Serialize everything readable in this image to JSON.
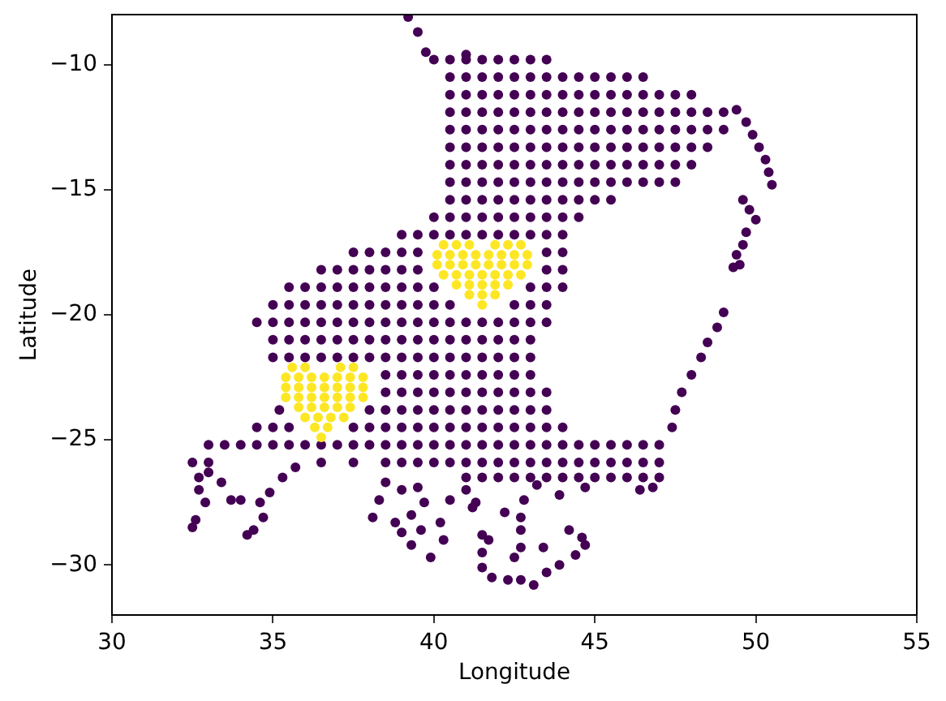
{
  "chart_data": {
    "type": "scatter",
    "xlabel": "Longitude",
    "ylabel": "Latitude",
    "xlim": [
      30,
      55
    ],
    "xticks": [
      30,
      35,
      40,
      45,
      50,
      55
    ],
    "ylim": [
      -32,
      -8
    ],
    "yticks": [
      {
        "value": -30,
        "label": "−30"
      },
      {
        "value": -25,
        "label": "−25"
      },
      {
        "value": -20,
        "label": "−20"
      },
      {
        "value": -15,
        "label": "−15"
      },
      {
        "value": -10,
        "label": "−10"
      }
    ],
    "marker": "circle",
    "series": [
      {
        "color": "#440154",
        "x": [
          39.2,
          39.5,
          39.75,
          40,
          41,
          40.5,
          41,
          41.5,
          42,
          42.5,
          43,
          43.5,
          40.5,
          41,
          41.5,
          42,
          42.5,
          43,
          43.5,
          44,
          44.5,
          45,
          45.5,
          46,
          46.5,
          40.5,
          41,
          41.5,
          42,
          42.5,
          43,
          43.5,
          44,
          44.5,
          45,
          45.5,
          46,
          46.5,
          47,
          47.5,
          48,
          40.5,
          41,
          41.5,
          42,
          42.5,
          43,
          43.5,
          44,
          44.5,
          45,
          45.5,
          46,
          46.5,
          47,
          47.5,
          48,
          48.5,
          49,
          40.5,
          41,
          41.5,
          42,
          42.5,
          43,
          43.5,
          44,
          44.5,
          45,
          45.5,
          46,
          46.5,
          47,
          47.5,
          48,
          48.5,
          49,
          40.5,
          41,
          41.5,
          42,
          42.5,
          43,
          43.5,
          44,
          44.5,
          45,
          45.5,
          46,
          46.5,
          47,
          47.5,
          48,
          48.5,
          40.5,
          41,
          41.5,
          42,
          42.5,
          43,
          43.5,
          44,
          44.5,
          45,
          45.5,
          46,
          46.5,
          47,
          47.5,
          48,
          40.5,
          41,
          41.5,
          42,
          42.5,
          43,
          43.5,
          44,
          44.5,
          45,
          45.5,
          46,
          46.5,
          47,
          47.5,
          40.5,
          41,
          41.5,
          42,
          42.5,
          43,
          43.5,
          44,
          44.5,
          45,
          45.5,
          40,
          40.5,
          41,
          41.5,
          42,
          42.5,
          43,
          43.5,
          44,
          44.5,
          39,
          39.5,
          40,
          40.5,
          41,
          41.5,
          42,
          42.5,
          43,
          43.5,
          44,
          37.5,
          38,
          38.5,
          39,
          39.5,
          43.5,
          44,
          36.5,
          37,
          37.5,
          38,
          38.5,
          39,
          39.5,
          43.5,
          44,
          35.5,
          36,
          36.5,
          37,
          37.5,
          38,
          38.5,
          39,
          39.5,
          40,
          43,
          43.5,
          44,
          35,
          35.5,
          36,
          36.5,
          37,
          37.5,
          38,
          38.5,
          39,
          39.5,
          40,
          40.5,
          42.5,
          43,
          43.5,
          34.5,
          35,
          35.5,
          36,
          36.5,
          37,
          37.5,
          38,
          38.5,
          39,
          39.5,
          40,
          40.5,
          41,
          41.5,
          42,
          42.5,
          43,
          43.5,
          35,
          35.5,
          36,
          36.5,
          37,
          37.5,
          38,
          38.5,
          39,
          39.5,
          40,
          40.5,
          41,
          41.5,
          42,
          42.5,
          43,
          35,
          35.5,
          36,
          36.5,
          37,
          37.5,
          38,
          38.5,
          39,
          39.5,
          40,
          40.5,
          41,
          41.5,
          42,
          42.5,
          43,
          38.5,
          39,
          39.5,
          40,
          40.5,
          41,
          41.5,
          42,
          42.5,
          43,
          38.5,
          39,
          39.5,
          40,
          40.5,
          41,
          41.5,
          42,
          42.5,
          43,
          43.5,
          35.2,
          38,
          38.5,
          39,
          39.5,
          40,
          40.5,
          41,
          41.5,
          42,
          42.5,
          43,
          43.5,
          34.5,
          35,
          35.5,
          37.5,
          38,
          38.5,
          39,
          39.5,
          40,
          40.5,
          41,
          41.5,
          42,
          42.5,
          43,
          43.5,
          44,
          33,
          33.5,
          34,
          34.5,
          35,
          35.5,
          36,
          36.5,
          37,
          37.5,
          38,
          38.5,
          39,
          39.5,
          40,
          40.5,
          41,
          41.5,
          42,
          42.5,
          43,
          43.5,
          44,
          44.5,
          45,
          45.5,
          46,
          46.5,
          47,
          32.5,
          33,
          36.5,
          37.5,
          38.5,
          39,
          39.5,
          40,
          40.5,
          41,
          41.5,
          42,
          42.5,
          43,
          43.5,
          44,
          44.5,
          45,
          45.5,
          46,
          46.5,
          47,
          32.7,
          41,
          41.5,
          42,
          42.5,
          43,
          43.5,
          44,
          44.5,
          45,
          45.5,
          46,
          46.5,
          47,
          49.4,
          49.7,
          49.9,
          50.1,
          50.3,
          50.4,
          50.5,
          49.6,
          49.8,
          50,
          49.7,
          49.6,
          49.4,
          49.3,
          49.5,
          49,
          48.8,
          48.5,
          48.3,
          48,
          47.7,
          47.5,
          47.4,
          32.5,
          32.6,
          34.2,
          34.4,
          34.7,
          33.7,
          33.4,
          34.9,
          35.3,
          35.7,
          34.6,
          34,
          32.9,
          32.7,
          33,
          38.1,
          38.3,
          38.5,
          39,
          39.3,
          39.9,
          40.3,
          40.2,
          39.7,
          40.5,
          39.5,
          41.2,
          41.5,
          41.5,
          41.5,
          41.8,
          42.3,
          42.7,
          43.1,
          43.5,
          43.9,
          44.4,
          44.7,
          44.6,
          44.2,
          43.4,
          42.7,
          42.7,
          42.5,
          41.7,
          42.7,
          42.2,
          41.3,
          41,
          42.8,
          43.9,
          44.7,
          46.4,
          46.8,
          43.2,
          39,
          39.3,
          38.8,
          39.6
        ],
        "values": [
          -8.1,
          -8.7,
          -9.5,
          -9.8,
          -9.6,
          -9.8,
          -9.8,
          -9.8,
          -9.8,
          -9.8,
          -9.8,
          -9.8,
          -10.5,
          -10.5,
          -10.5,
          -10.5,
          -10.5,
          -10.5,
          -10.5,
          -10.5,
          -10.5,
          -10.5,
          -10.5,
          -10.5,
          -10.5,
          -11.2,
          -11.2,
          -11.2,
          -11.2,
          -11.2,
          -11.2,
          -11.2,
          -11.2,
          -11.2,
          -11.2,
          -11.2,
          -11.2,
          -11.2,
          -11.2,
          -11.2,
          -11.2,
          -11.9,
          -11.9,
          -11.9,
          -11.9,
          -11.9,
          -11.9,
          -11.9,
          -11.9,
          -11.9,
          -11.9,
          -11.9,
          -11.9,
          -11.9,
          -11.9,
          -11.9,
          -11.9,
          -11.9,
          -11.9,
          -12.6,
          -12.6,
          -12.6,
          -12.6,
          -12.6,
          -12.6,
          -12.6,
          -12.6,
          -12.6,
          -12.6,
          -12.6,
          -12.6,
          -12.6,
          -12.6,
          -12.6,
          -12.6,
          -12.6,
          -12.6,
          -13.3,
          -13.3,
          -13.3,
          -13.3,
          -13.3,
          -13.3,
          -13.3,
          -13.3,
          -13.3,
          -13.3,
          -13.3,
          -13.3,
          -13.3,
          -13.3,
          -13.3,
          -13.3,
          -13.3,
          -14,
          -14,
          -14,
          -14,
          -14,
          -14,
          -14,
          -14,
          -14,
          -14,
          -14,
          -14,
          -14,
          -14,
          -14,
          -14,
          -14.7,
          -14.7,
          -14.7,
          -14.7,
          -14.7,
          -14.7,
          -14.7,
          -14.7,
          -14.7,
          -14.7,
          -14.7,
          -14.7,
          -14.7,
          -14.7,
          -14.7,
          -15.4,
          -15.4,
          -15.4,
          -15.4,
          -15.4,
          -15.4,
          -15.4,
          -15.4,
          -15.4,
          -15.4,
          -15.4,
          -16.1,
          -16.1,
          -16.1,
          -16.1,
          -16.1,
          -16.1,
          -16.1,
          -16.1,
          -16.1,
          -16.1,
          -16.8,
          -16.8,
          -16.8,
          -16.8,
          -16.8,
          -16.8,
          -16.8,
          -16.8,
          -16.8,
          -16.8,
          -16.8,
          -17.5,
          -17.5,
          -17.5,
          -17.5,
          -17.5,
          -17.5,
          -17.5,
          -18.2,
          -18.2,
          -18.2,
          -18.2,
          -18.2,
          -18.2,
          -18.2,
          -18.2,
          -18.2,
          -18.9,
          -18.9,
          -18.9,
          -18.9,
          -18.9,
          -18.9,
          -18.9,
          -18.9,
          -18.9,
          -18.9,
          -18.9,
          -18.9,
          -18.9,
          -19.6,
          -19.6,
          -19.6,
          -19.6,
          -19.6,
          -19.6,
          -19.6,
          -19.6,
          -19.6,
          -19.6,
          -19.6,
          -19.6,
          -19.6,
          -19.6,
          -19.6,
          -20.3,
          -20.3,
          -20.3,
          -20.3,
          -20.3,
          -20.3,
          -20.3,
          -20.3,
          -20.3,
          -20.3,
          -20.3,
          -20.3,
          -20.3,
          -20.3,
          -20.3,
          -20.3,
          -20.3,
          -20.3,
          -20.3,
          -21,
          -21,
          -21,
          -21,
          -21,
          -21,
          -21,
          -21,
          -21,
          -21,
          -21,
          -21,
          -21,
          -21,
          -21,
          -21,
          -21,
          -21.7,
          -21.7,
          -21.7,
          -21.7,
          -21.7,
          -21.7,
          -21.7,
          -21.7,
          -21.7,
          -21.7,
          -21.7,
          -21.7,
          -21.7,
          -21.7,
          -21.7,
          -21.7,
          -21.7,
          -22.4,
          -22.4,
          -22.4,
          -22.4,
          -22.4,
          -22.4,
          -22.4,
          -22.4,
          -22.4,
          -22.4,
          -23.1,
          -23.1,
          -23.1,
          -23.1,
          -23.1,
          -23.1,
          -23.1,
          -23.1,
          -23.1,
          -23.1,
          -23.1,
          -23.8,
          -23.8,
          -23.8,
          -23.8,
          -23.8,
          -23.8,
          -23.8,
          -23.8,
          -23.8,
          -23.8,
          -23.8,
          -23.8,
          -23.8,
          -24.5,
          -24.5,
          -24.5,
          -24.5,
          -24.5,
          -24.5,
          -24.5,
          -24.5,
          -24.5,
          -24.5,
          -24.5,
          -24.5,
          -24.5,
          -24.5,
          -24.5,
          -24.5,
          -24.5,
          -25.2,
          -25.2,
          -25.2,
          -25.2,
          -25.2,
          -25.2,
          -25.2,
          -25.2,
          -25.2,
          -25.2,
          -25.2,
          -25.2,
          -25.2,
          -25.2,
          -25.2,
          -25.2,
          -25.2,
          -25.2,
          -25.2,
          -25.2,
          -25.2,
          -25.2,
          -25.2,
          -25.2,
          -25.2,
          -25.2,
          -25.2,
          -25.2,
          -25.2,
          -25.9,
          -25.9,
          -25.9,
          -25.9,
          -25.9,
          -25.9,
          -25.9,
          -25.9,
          -25.9,
          -25.9,
          -25.9,
          -25.9,
          -25.9,
          -25.9,
          -25.9,
          -25.9,
          -25.9,
          -25.9,
          -25.9,
          -25.9,
          -25.9,
          -25.9,
          -26.5,
          -26.5,
          -26.5,
          -26.5,
          -26.5,
          -26.5,
          -26.5,
          -26.5,
          -26.5,
          -26.5,
          -26.5,
          -26.5,
          -26.5,
          -26.5,
          -11.8,
          -12.3,
          -12.8,
          -13.3,
          -13.8,
          -14.3,
          -14.8,
          -15.4,
          -15.8,
          -16.2,
          -16.7,
          -17.2,
          -17.6,
          -18.1,
          -18,
          -19.9,
          -20.5,
          -21.1,
          -21.7,
          -22.4,
          -23.1,
          -23.8,
          -24.5,
          -28.5,
          -28.2,
          -28.8,
          -28.6,
          -28.1,
          -27.4,
          -26.7,
          -27.1,
          -26.5,
          -26.1,
          -27.5,
          -27.4,
          -27.5,
          -27,
          -26.3,
          -28.1,
          -27.4,
          -26.7,
          -28.7,
          -29.2,
          -29.7,
          -29,
          -28.3,
          -27.5,
          -27.4,
          -26.9,
          -27.7,
          -28.8,
          -30.1,
          -29.5,
          -30.5,
          -30.6,
          -30.6,
          -30.8,
          -30.3,
          -30,
          -29.6,
          -29.2,
          -28.9,
          -28.6,
          -29.3,
          -29.3,
          -28.6,
          -29.7,
          -29,
          -28.1,
          -27.9,
          -27.5,
          -27,
          -27.4,
          -27.2,
          -26.9,
          -27,
          -26.9,
          -26.8,
          -27,
          -28,
          -28.3,
          -28.6
        ]
      },
      {
        "color": "#fde725",
        "x": [
          40.3,
          40.7,
          41.1,
          41.9,
          42.3,
          42.7,
          40.1,
          40.5,
          40.9,
          41.3,
          41.7,
          42.1,
          42.5,
          42.9,
          40.1,
          40.5,
          40.9,
          41.3,
          41.7,
          42.1,
          42.5,
          42.9,
          40.3,
          40.7,
          41.1,
          41.5,
          41.9,
          42.3,
          42.7,
          40.7,
          41.1,
          41.5,
          41.9,
          42.3,
          41.1,
          41.5,
          41.9,
          41.5,
          35.6,
          36,
          37.1,
          37.5,
          35.4,
          35.8,
          36.2,
          36.6,
          37,
          37.4,
          37.8,
          35.4,
          35.8,
          36.2,
          36.6,
          37,
          37.4,
          37.8,
          35.4,
          35.8,
          36.2,
          36.6,
          37,
          37.4,
          37.8,
          35.8,
          36.2,
          36.6,
          37,
          37.4,
          36,
          36.4,
          36.8,
          37.2,
          36.3,
          36.7,
          36.5
        ],
        "values": [
          -17.2,
          -17.2,
          -17.2,
          -17.2,
          -17.2,
          -17.2,
          -17.6,
          -17.6,
          -17.6,
          -17.6,
          -17.6,
          -17.6,
          -17.6,
          -17.6,
          -18,
          -18,
          -18,
          -18,
          -18,
          -18,
          -18,
          -18,
          -18.4,
          -18.4,
          -18.4,
          -18.4,
          -18.4,
          -18.4,
          -18.4,
          -18.8,
          -18.8,
          -18.8,
          -18.8,
          -18.8,
          -19.2,
          -19.2,
          -19.2,
          -19.6,
          -22.1,
          -22.1,
          -22.1,
          -22.1,
          -22.5,
          -22.5,
          -22.5,
          -22.5,
          -22.5,
          -22.5,
          -22.5,
          -22.9,
          -22.9,
          -22.9,
          -22.9,
          -22.9,
          -22.9,
          -22.9,
          -23.3,
          -23.3,
          -23.3,
          -23.3,
          -23.3,
          -23.3,
          -23.3,
          -23.7,
          -23.7,
          -23.7,
          -23.7,
          -23.7,
          -24.1,
          -24.1,
          -24.1,
          -24.1,
          -24.5,
          -24.5,
          -24.9
        ]
      }
    ]
  }
}
